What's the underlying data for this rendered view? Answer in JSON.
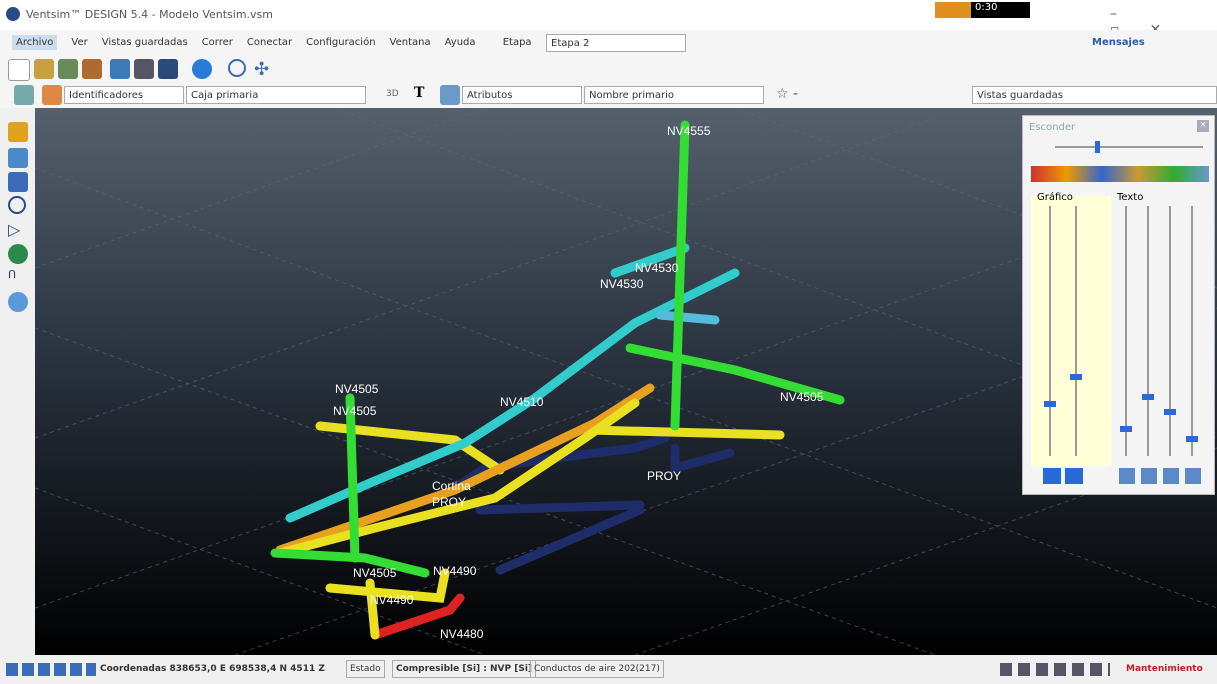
{
  "window": {
    "title": "Ventsim™ DESIGN 5.4 - Modelo Ventsim.vsm",
    "timer": "0:30"
  },
  "menu": {
    "items": [
      "Archivo",
      "Ver",
      "Vistas guardadas",
      "Correr",
      "Conectar",
      "Configuración",
      "Ventana",
      "Ayuda"
    ],
    "stage_label": "Etapa",
    "stage_value": "Etapa 2",
    "messages": "Mensajes"
  },
  "toolbar": {
    "mode": "3D",
    "identifiers": "Identificadores",
    "box": "Caja primaria",
    "attributes": "Atributos",
    "name": "Nombre primario",
    "saved_views": "Vistas guardadas"
  },
  "viewport": {
    "labels": [
      "NV4555",
      "NV4530",
      "NV4530",
      "NV4505",
      "NV4505",
      "NV4510",
      "NV4505",
      "Cortina",
      "PROY",
      "PROY",
      "NV4505",
      "NV4490",
      "NV4490",
      "NV4480"
    ]
  },
  "panel": {
    "title": "Esconder",
    "graphics": "Gráfico",
    "text": "Texto"
  },
  "statusbar": {
    "coordinates": "Coordenadas 838653,0 E  698538,4 N  4511 Z",
    "state": "Estado",
    "compressible": "Compresible [Si] : NVP [Si]",
    "ducts": "Conductos de aire 202(217)",
    "maintenance": "Mantenimiento"
  }
}
